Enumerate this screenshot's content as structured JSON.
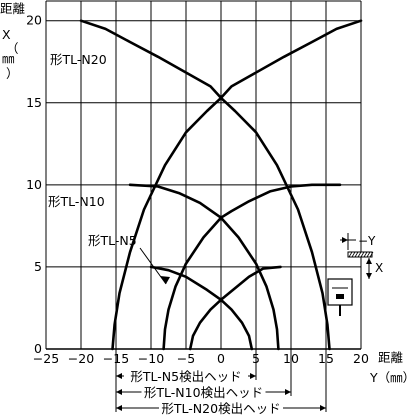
{
  "chart_data": {
    "type": "line",
    "y_axis": {
      "label_lines": [
        "距離",
        "X",
        "（",
        "㎜",
        "）"
      ],
      "range": [
        0,
        20
      ],
      "ticks": [
        0,
        5,
        10,
        15,
        20
      ]
    },
    "x_axis": {
      "label_lines": [
        "距離",
        "Y（㎜）"
      ],
      "range": [
        -25,
        20
      ],
      "ticks": [
        -25,
        -20,
        -15,
        -10,
        -5,
        0,
        5,
        10,
        15,
        20
      ],
      "tick_labels": [
        "−25",
        "−20",
        "−15",
        "−10",
        "−5",
        "0",
        "5",
        "10",
        "15",
        "20"
      ]
    },
    "grid": true,
    "series": [
      {
        "name": "形TL-N20",
        "curves": [
          {
            "part": "outer-left",
            "points": [
              [
                -20,
                20
              ],
              [
                -16.5,
                19.5
              ],
              [
                -13,
                18.7
              ],
              [
                -9,
                17.8
              ],
              [
                -4,
                16.6
              ],
              [
                -1.5,
                16
              ],
              [
                0,
                15.3
              ],
              [
                2,
                14.5
              ],
              [
                5,
                13.2
              ],
              [
                8,
                11.2
              ],
              [
                11,
                8.5
              ],
              [
                13,
                5.9
              ],
              [
                14.5,
                3.4
              ],
              [
                15.2,
                1.5
              ],
              [
                15.5,
                0
              ]
            ]
          },
          {
            "part": "outer-right",
            "points": [
              [
                20,
                20
              ],
              [
                16.5,
                19.5
              ],
              [
                13,
                18.7
              ],
              [
                9,
                17.8
              ],
              [
                4,
                16.6
              ],
              [
                1.5,
                16
              ],
              [
                0,
                15.3
              ],
              [
                -2,
                14.5
              ],
              [
                -5,
                13.2
              ],
              [
                -8,
                11.2
              ],
              [
                -11,
                8.5
              ],
              [
                -13,
                5.9
              ],
              [
                -14.5,
                3.4
              ],
              [
                -15.2,
                1.5
              ],
              [
                -15.5,
                0
              ]
            ]
          }
        ]
      },
      {
        "name": "形TL-N10",
        "curves": [
          {
            "part": "outer-left",
            "points": [
              [
                -13,
                10
              ],
              [
                -9,
                9.9
              ],
              [
                -6,
                9.5
              ],
              [
                -3,
                8.9
              ],
              [
                0,
                8
              ],
              [
                2.5,
                6.8
              ],
              [
                5,
                5.2
              ],
              [
                6.5,
                3.8
              ],
              [
                7.5,
                2.4
              ],
              [
                8,
                1.2
              ],
              [
                8.2,
                0
              ]
            ]
          },
          {
            "part": "outer-right",
            "points": [
              [
                17,
                10
              ],
              [
                13,
                10
              ],
              [
                10,
                9.9
              ],
              [
                7,
                9.6
              ],
              [
                4,
                9
              ],
              [
                1.5,
                8.4
              ],
              [
                0,
                8
              ],
              [
                -2.5,
                6.8
              ],
              [
                -5,
                5.2
              ],
              [
                -6.5,
                3.8
              ],
              [
                -7.5,
                2.4
              ],
              [
                -8,
                1.2
              ],
              [
                -8.2,
                0
              ]
            ]
          }
        ]
      },
      {
        "name": "形TL-N5",
        "curves": [
          {
            "part": "outer-left",
            "points": [
              [
                -10,
                5
              ],
              [
                -7.5,
                4.8
              ],
              [
                -5,
                4.4
              ],
              [
                -2,
                3.6
              ],
              [
                0,
                3
              ],
              [
                1.5,
                2.4
              ],
              [
                3,
                1.6
              ],
              [
                4,
                0.8
              ],
              [
                4.4,
                0
              ]
            ]
          },
          {
            "part": "outer-right",
            "points": [
              [
                8.5,
                5
              ],
              [
                6,
                4.9
              ],
              [
                4,
                4.4
              ],
              [
                2,
                3.7
              ],
              [
                0,
                3
              ],
              [
                -1.5,
                2.4
              ],
              [
                -3,
                1.6
              ],
              [
                -4,
                0.8
              ],
              [
                -4.4,
                0
              ]
            ]
          }
        ]
      }
    ],
    "annotations": [
      {
        "text": "形TL-N20",
        "anchor_x": -20,
        "anchor_y": 20
      },
      {
        "text": "形TL-N10",
        "anchor_x": -14,
        "anchor_y": 10
      },
      {
        "text": "形TL-N5",
        "anchor_x": -9,
        "anchor_y": 5
      }
    ],
    "detection_ranges": [
      {
        "text": "形TL-N5検出ヘッド",
        "from": -15,
        "to": 5
      },
      {
        "text": "形TL-N10検出ヘッド",
        "from": -15,
        "to": 10
      },
      {
        "text": "形TL-N20検出ヘッド",
        "from": -15,
        "to": 15
      }
    ],
    "inset": {
      "y_label": "Y",
      "x_label": "X"
    }
  }
}
